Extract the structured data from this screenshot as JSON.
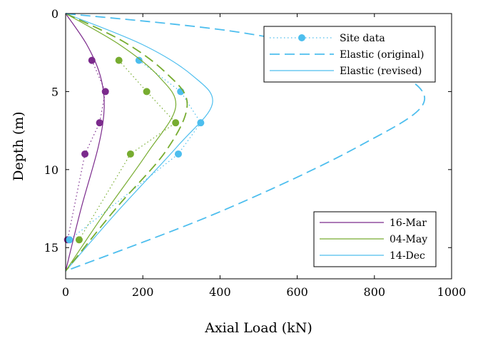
{
  "chart_data": {
    "type": "line",
    "title": "",
    "xlabel": "Axial Load (kN)",
    "ylabel": "Depth (m)",
    "xlim": [
      0,
      1000
    ],
    "ylim": [
      0,
      17
    ],
    "y_reversed": true,
    "xticks": [
      0,
      200,
      400,
      600,
      800,
      1000
    ],
    "yticks": [
      0,
      5,
      10,
      15
    ],
    "grid": false,
    "colors": {
      "mar": "#7b2a8c",
      "may": "#77ac30",
      "dec": "#4dbeee"
    },
    "legend_style": {
      "position": "top-right",
      "entries": [
        {
          "label": "Site data",
          "style": "dotted-marker",
          "color": "#4dbeee"
        },
        {
          "label": "Elastic (original)",
          "style": "dashed",
          "color": "#4dbeee"
        },
        {
          "label": "Elastic (revised)",
          "style": "solid",
          "color": "#4dbeee"
        }
      ]
    },
    "legend_date": {
      "position": "bottom-right",
      "entries": [
        {
          "label": "16-Mar",
          "color": "#7b2a8c"
        },
        {
          "label": "04-May",
          "color": "#77ac30"
        },
        {
          "label": "14-Dec",
          "color": "#4dbeee"
        }
      ]
    },
    "series": [
      {
        "group": "16-Mar",
        "kind": "site",
        "color": "#7b2a8c",
        "points": [
          [
            68,
            3
          ],
          [
            103,
            5
          ],
          [
            88,
            7
          ],
          [
            50,
            9
          ],
          [
            5,
            14.5
          ]
        ]
      },
      {
        "group": "04-May",
        "kind": "site",
        "color": "#77ac30",
        "points": [
          [
            138,
            3
          ],
          [
            210,
            5
          ],
          [
            285,
            7
          ],
          [
            168,
            9
          ],
          [
            35,
            14.5
          ]
        ]
      },
      {
        "group": "14-Dec",
        "kind": "site",
        "color": "#4dbeee",
        "points": [
          [
            190,
            3
          ],
          [
            298,
            5
          ],
          [
            350,
            7
          ],
          [
            292,
            9
          ],
          [
            10,
            14.5
          ]
        ]
      },
      {
        "group": "16-Mar",
        "kind": "revised",
        "color": "#7b2a8c",
        "points": [
          [
            0,
            0
          ],
          [
            55,
            2
          ],
          [
            90,
            4
          ],
          [
            100,
            6
          ],
          [
            85,
            8.5
          ],
          [
            40,
            12.5
          ],
          [
            0,
            16.5
          ]
        ]
      },
      {
        "group": "04-May",
        "kind": "revised",
        "color": "#77ac30",
        "points": [
          [
            0,
            0
          ],
          [
            140,
            2
          ],
          [
            240,
            4
          ],
          [
            285,
            6
          ],
          [
            210,
            9
          ],
          [
            95,
            13
          ],
          [
            0,
            16.5
          ]
        ]
      },
      {
        "group": "14-Dec",
        "kind": "revised",
        "color": "#4dbeee",
        "points": [
          [
            0,
            0
          ],
          [
            200,
            2
          ],
          [
            330,
            4
          ],
          [
            380,
            5.8
          ],
          [
            290,
            8.5
          ],
          [
            130,
            12.8
          ],
          [
            0,
            16.5
          ]
        ]
      },
      {
        "group": "04-May",
        "kind": "original",
        "color": "#77ac30",
        "points": [
          [
            0,
            0
          ],
          [
            150,
            1.8
          ],
          [
            260,
            3.8
          ],
          [
            315,
            5.8
          ],
          [
            260,
            8.8
          ],
          [
            130,
            12.5
          ],
          [
            0,
            16.5
          ]
        ]
      },
      {
        "group": "14-Dec",
        "kind": "original",
        "color": "#4dbeee",
        "points": [
          [
            0,
            0
          ],
          [
            450,
            1.2
          ],
          [
            780,
            3
          ],
          [
            930,
            5.5
          ],
          [
            760,
            8.5
          ],
          [
            400,
            12.7
          ],
          [
            0,
            16.5
          ]
        ]
      }
    ]
  }
}
